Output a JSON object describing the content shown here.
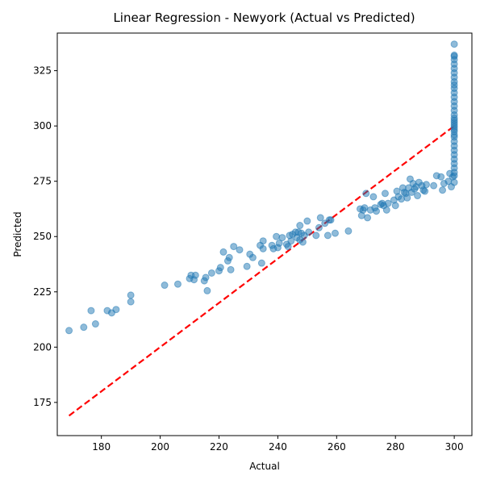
{
  "chart_data": {
    "type": "scatter",
    "title": "Linear Regression - Newyork (Actual vs Predicted)",
    "xlabel": "Actual",
    "ylabel": "Predicted",
    "xlim": [
      165,
      306
    ],
    "ylim": [
      160,
      342
    ],
    "xticks": [
      180,
      200,
      220,
      240,
      260,
      280,
      300
    ],
    "yticks": [
      175,
      200,
      225,
      250,
      275,
      300,
      325
    ],
    "grid": false,
    "legend": "none",
    "colors": {
      "points": "#1f77b4",
      "reference_line": "#ff0000"
    },
    "reference_line": {
      "style": "dashed",
      "x": [
        169,
        300
      ],
      "y": [
        169,
        300
      ]
    },
    "series": [
      {
        "points": [
          [
            169,
            207.5
          ],
          [
            174,
            209
          ],
          [
            176.5,
            216.5
          ],
          [
            178,
            210.5
          ],
          [
            182,
            216.5
          ],
          [
            183.5,
            215.5
          ],
          [
            185,
            217
          ],
          [
            190,
            223.5
          ],
          [
            190,
            220.5
          ],
          [
            201.5,
            228
          ],
          [
            206,
            228.5
          ],
          [
            210,
            231
          ],
          [
            210.5,
            232.5
          ],
          [
            211.5,
            230.5
          ],
          [
            212,
            232.5
          ],
          [
            215,
            230
          ],
          [
            215.5,
            231.5
          ],
          [
            216,
            225.5
          ],
          [
            217.5,
            233.5
          ],
          [
            220,
            234.5
          ],
          [
            220.5,
            236
          ],
          [
            221.5,
            243
          ],
          [
            223,
            239
          ],
          [
            223.5,
            240.5
          ],
          [
            224,
            235
          ],
          [
            225,
            245.5
          ],
          [
            227,
            244
          ],
          [
            229.5,
            236.5
          ],
          [
            230.5,
            242
          ],
          [
            231.5,
            240.5
          ],
          [
            234,
            246
          ],
          [
            234.5,
            238
          ],
          [
            235,
            244.5
          ],
          [
            235,
            248
          ],
          [
            238,
            246
          ],
          [
            238.5,
            244.5
          ],
          [
            239.5,
            250
          ],
          [
            240,
            245
          ],
          [
            240.5,
            247
          ],
          [
            241.5,
            249.5
          ],
          [
            243,
            246.5
          ],
          [
            243.5,
            245.5
          ],
          [
            244,
            250.5
          ],
          [
            244.5,
            248
          ],
          [
            245,
            251
          ],
          [
            246,
            252
          ],
          [
            246.5,
            249.5
          ],
          [
            247,
            252
          ],
          [
            247.5,
            255
          ],
          [
            247.5,
            248.5
          ],
          [
            248,
            251.5
          ],
          [
            248.5,
            247.5
          ],
          [
            249,
            250.5
          ],
          [
            250,
            257
          ],
          [
            250.5,
            252
          ],
          [
            253,
            250.5
          ],
          [
            254,
            254
          ],
          [
            254.5,
            258.5
          ],
          [
            256,
            256
          ],
          [
            257,
            250.5
          ],
          [
            257.5,
            257.5
          ],
          [
            258,
            257.5
          ],
          [
            259.5,
            251.5
          ],
          [
            264,
            252.5
          ],
          [
            268,
            262.5
          ],
          [
            268.5,
            259.5
          ],
          [
            269,
            262
          ],
          [
            269.5,
            263
          ],
          [
            270,
            269.5
          ],
          [
            270.5,
            258.5
          ],
          [
            271.5,
            262
          ],
          [
            272.5,
            268
          ],
          [
            273,
            263
          ],
          [
            273.5,
            261.5
          ],
          [
            275,
            264.5
          ],
          [
            275.5,
            265
          ],
          [
            276,
            264
          ],
          [
            276.5,
            269.5
          ],
          [
            277,
            262
          ],
          [
            277.5,
            265
          ],
          [
            279.5,
            266.5
          ],
          [
            280,
            264
          ],
          [
            280.5,
            270.5
          ],
          [
            281,
            268
          ],
          [
            282,
            267
          ],
          [
            282.5,
            272
          ],
          [
            283,
            270
          ],
          [
            283.5,
            269.5
          ],
          [
            284,
            267.5
          ],
          [
            284.5,
            272
          ],
          [
            285,
            276
          ],
          [
            285.5,
            270
          ],
          [
            286,
            274
          ],
          [
            286.5,
            271.5
          ],
          [
            287,
            272.5
          ],
          [
            287.5,
            268.5
          ],
          [
            288,
            274.5
          ],
          [
            289,
            273
          ],
          [
            289.5,
            271
          ],
          [
            290,
            270.5
          ],
          [
            290.5,
            273.5
          ],
          [
            293,
            273
          ],
          [
            294,
            277.5
          ],
          [
            295.5,
            277
          ],
          [
            296,
            271
          ],
          [
            296.5,
            274
          ],
          [
            298,
            275
          ],
          [
            298.5,
            278.5
          ],
          [
            299,
            272.5
          ],
          [
            299.5,
            277
          ],
          [
            300,
            274.5
          ],
          [
            300,
            277.5
          ],
          [
            300,
            279
          ],
          [
            300,
            281
          ],
          [
            300,
            283
          ],
          [
            300,
            285
          ],
          [
            300,
            287
          ],
          [
            300,
            289
          ],
          [
            300,
            291
          ],
          [
            300,
            293
          ],
          [
            300,
            295
          ],
          [
            300,
            296
          ],
          [
            300,
            297.5
          ],
          [
            300,
            298.5
          ],
          [
            300,
            299.5
          ],
          [
            300,
            300.5
          ],
          [
            300,
            301.5
          ],
          [
            300,
            302.5
          ],
          [
            300,
            303.5
          ],
          [
            300,
            305
          ],
          [
            300,
            307
          ],
          [
            300,
            309
          ],
          [
            300,
            311
          ],
          [
            300,
            313
          ],
          [
            300,
            315
          ],
          [
            300,
            317
          ],
          [
            300,
            318.5
          ],
          [
            300,
            320
          ],
          [
            300,
            322
          ],
          [
            300,
            324
          ],
          [
            300,
            326
          ],
          [
            300,
            328
          ],
          [
            300,
            330
          ],
          [
            300,
            331.5
          ],
          [
            300,
            332
          ],
          [
            300,
            337
          ]
        ]
      }
    ]
  }
}
